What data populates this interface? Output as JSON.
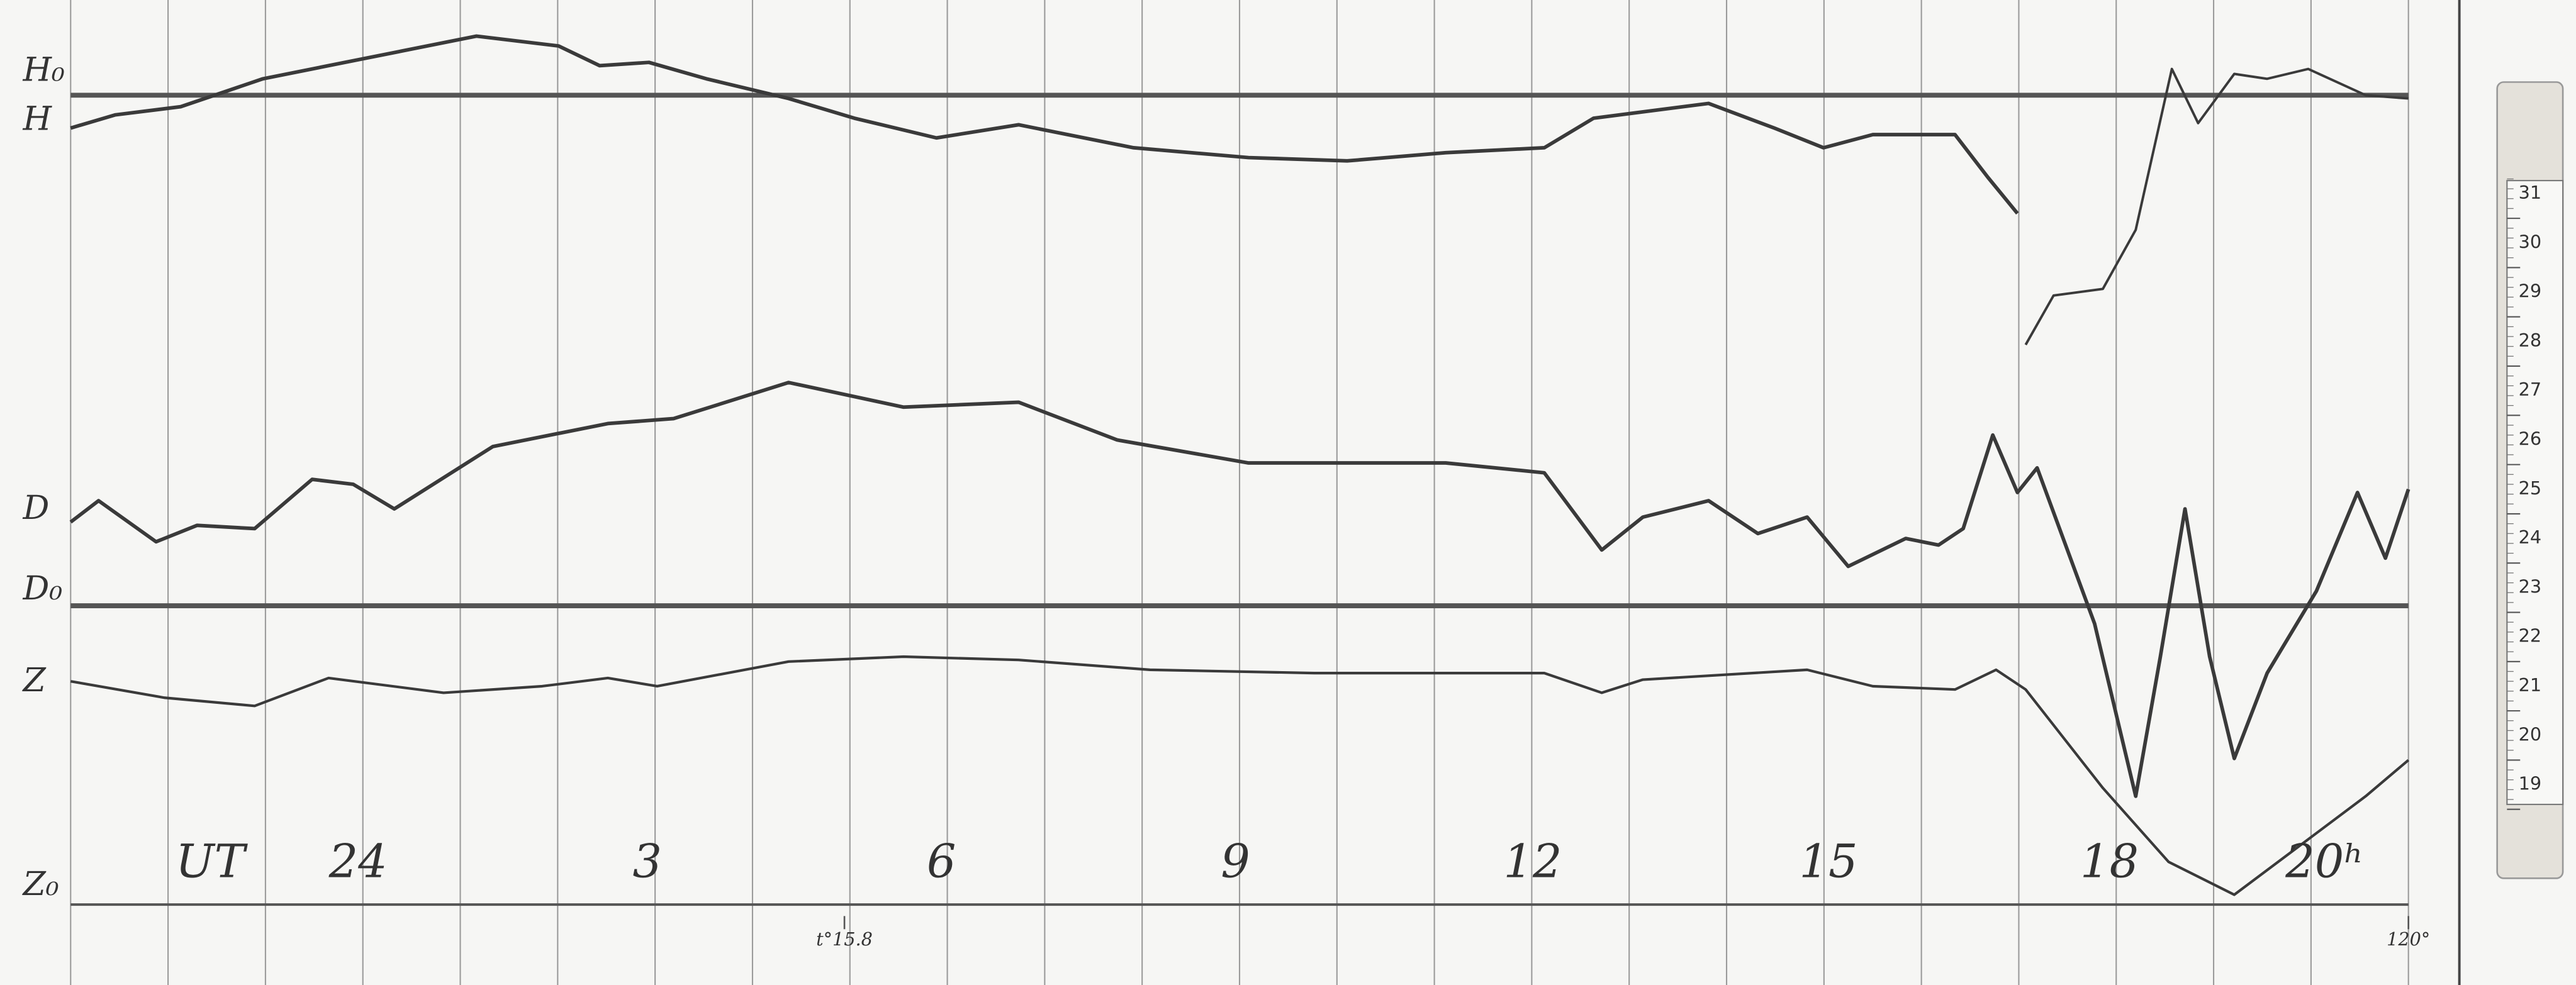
{
  "trace_labels": {
    "h0": "H₀",
    "h": "H",
    "d": "D",
    "d0": "D₀",
    "z": "Z",
    "z0": "Z₀"
  },
  "time_labels": [
    "UT",
    "24",
    "3",
    "6",
    "9",
    "12",
    "15",
    "18",
    "20ʰ"
  ],
  "annotations": [
    "t°15.8",
    "120°"
  ],
  "scale": [
    "31",
    "30",
    "29",
    "28",
    "27",
    "26",
    "25",
    "24",
    "23",
    "22",
    "21",
    "20",
    "19"
  ]
}
